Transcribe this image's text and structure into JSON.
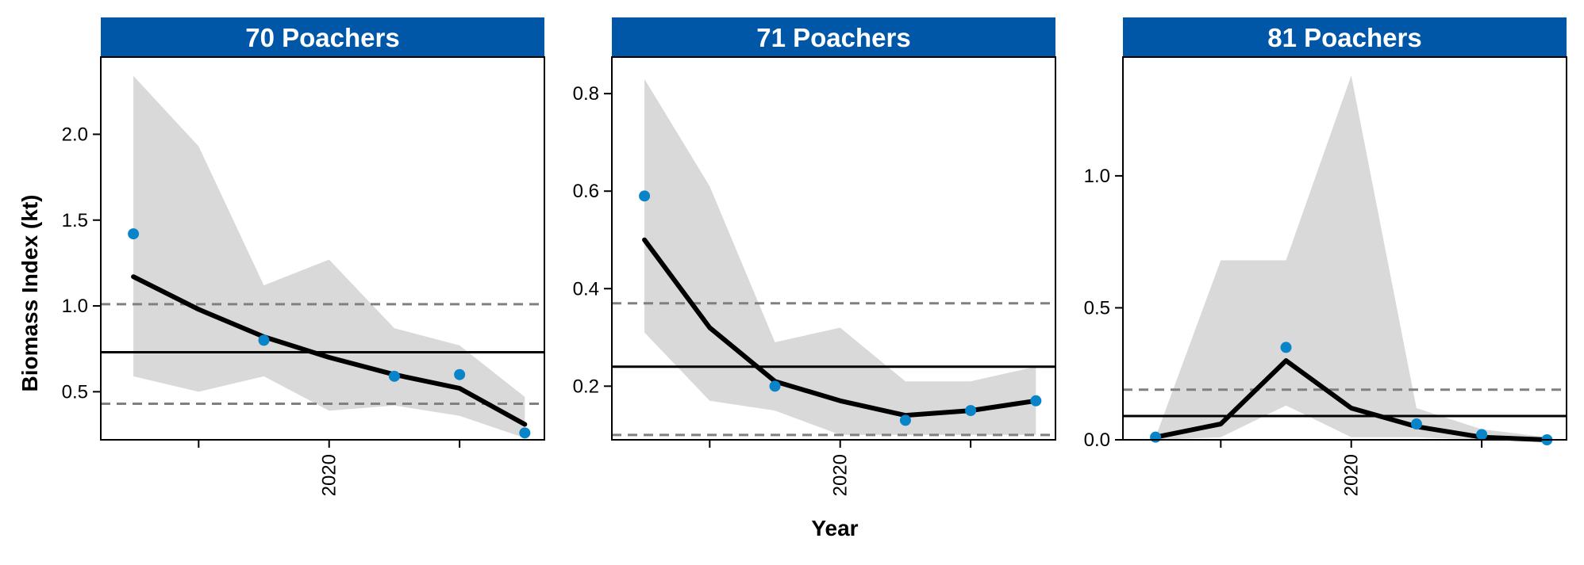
{
  "chart_data": {
    "type": "line",
    "xlabel": "Year",
    "ylabel": "Biomass Index (kt)",
    "x": [
      2017,
      2018,
      2019,
      2020,
      2021,
      2022,
      2023
    ],
    "xticks": [
      2018,
      2020,
      2022
    ],
    "xtick_labels": [
      "",
      "2020",
      ""
    ],
    "xlim": [
      2016.5,
      2023.3
    ],
    "colors": {
      "strip": "#0057A8",
      "points": "#0A84C9",
      "ribbon": "#D9D9D9",
      "line": "#000000",
      "reference_dashed": "#808080",
      "reference_solid": "#000000"
    },
    "panels": [
      {
        "title": "70 Poachers",
        "ylim": [
          0.22,
          2.45
        ],
        "yticks": [
          0.5,
          1.0,
          1.5,
          2.0
        ],
        "ytick_labels": [
          "0.5",
          "1.0",
          "1.5",
          "2.0"
        ],
        "fit": [
          1.17,
          0.98,
          0.82,
          0.7,
          0.6,
          0.52,
          0.31
        ],
        "ribbon_upper": [
          2.34,
          1.93,
          1.12,
          1.27,
          0.87,
          0.77,
          0.47
        ],
        "ribbon_lower": [
          0.59,
          0.5,
          0.59,
          0.39,
          0.42,
          0.36,
          0.23
        ],
        "observed": [
          {
            "x": 2017,
            "y": 1.42
          },
          {
            "x": 2019,
            "y": 0.8
          },
          {
            "x": 2021,
            "y": 0.59
          },
          {
            "x": 2022,
            "y": 0.6
          },
          {
            "x": 2023,
            "y": 0.26
          }
        ],
        "ref_solid": 0.73,
        "ref_dashed": [
          1.01,
          0.43
        ]
      },
      {
        "title": "71 Poachers",
        "ylim": [
          0.09,
          0.875
        ],
        "yticks": [
          0.2,
          0.4,
          0.6,
          0.8
        ],
        "ytick_labels": [
          "0.2",
          "0.4",
          "0.6",
          "0.8"
        ],
        "fit": [
          0.5,
          0.32,
          0.21,
          0.17,
          0.14,
          0.15,
          0.17
        ],
        "ribbon_upper": [
          0.83,
          0.61,
          0.29,
          0.32,
          0.21,
          0.21,
          0.24
        ],
        "ribbon_lower": [
          0.31,
          0.17,
          0.15,
          0.1,
          0.1,
          0.1,
          0.1
        ],
        "observed": [
          {
            "x": 2017,
            "y": 0.59
          },
          {
            "x": 2019,
            "y": 0.2
          },
          {
            "x": 2021,
            "y": 0.13
          },
          {
            "x": 2022,
            "y": 0.15
          },
          {
            "x": 2023,
            "y": 0.17
          }
        ],
        "ref_solid": 0.24,
        "ref_dashed": [
          0.37,
          0.1
        ]
      },
      {
        "title": "81 Poachers",
        "ylim": [
          0.0,
          1.45
        ],
        "yticks": [
          0.0,
          0.5,
          1.0
        ],
        "ytick_labels": [
          "0.0",
          "0.5",
          "1.0"
        ],
        "fit": [
          0.01,
          0.06,
          0.3,
          0.12,
          0.05,
          0.01,
          0.0
        ],
        "ribbon_upper": [
          0.01,
          0.68,
          0.68,
          1.38,
          0.12,
          0.04,
          0.01
        ],
        "ribbon_lower": [
          0.0,
          0.01,
          0.13,
          0.01,
          0.01,
          0.0,
          0.0
        ],
        "observed": [
          {
            "x": 2017,
            "y": 0.01
          },
          {
            "x": 2019,
            "y": 0.35
          },
          {
            "x": 2021,
            "y": 0.06
          },
          {
            "x": 2022,
            "y": 0.02
          },
          {
            "x": 2023,
            "y": 0.0
          }
        ],
        "ref_solid": 0.09,
        "ref_dashed": [
          0.19
        ]
      }
    ]
  }
}
